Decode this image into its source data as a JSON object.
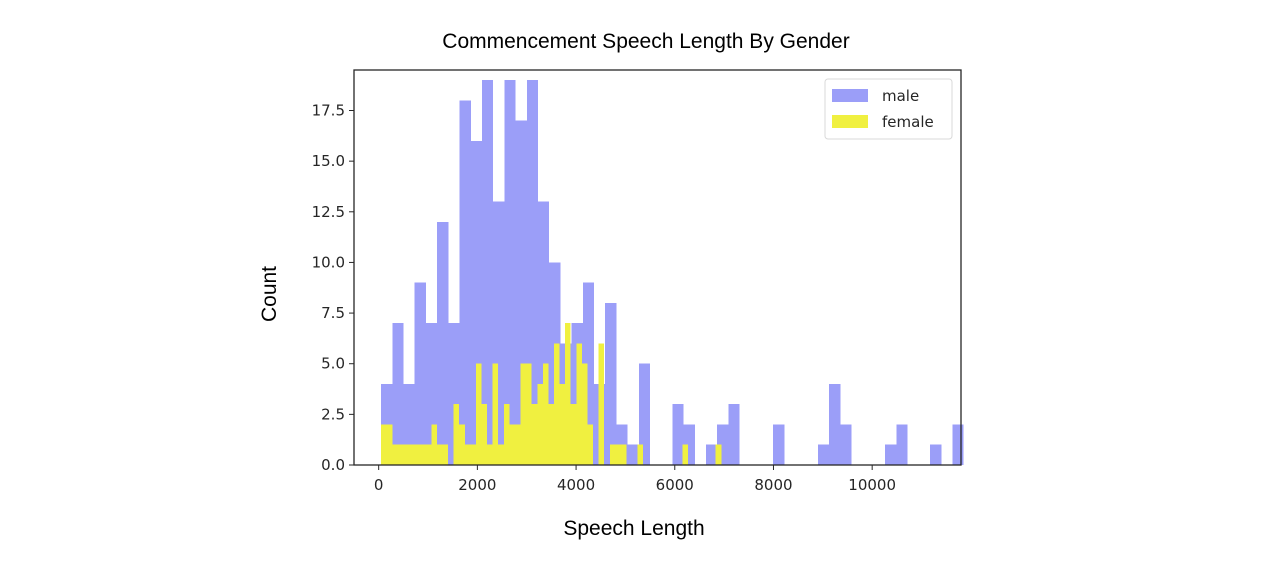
{
  "chart_data": {
    "type": "bar",
    "title": "Commencement Speech Length By Gender",
    "xlabel": "Speech Length",
    "ylabel": "Count",
    "xlim": [
      -500,
      11800
    ],
    "ylim": [
      0,
      19.5
    ],
    "xticks": [
      0,
      2000,
      4000,
      6000,
      8000,
      10000
    ],
    "yticks": [
      0.0,
      2.5,
      5.0,
      7.5,
      10.0,
      12.5,
      15.0,
      17.5
    ],
    "grid": false,
    "legend_position": "top-right",
    "series": [
      {
        "name": "male",
        "color": "#9b9ef8",
        "bin_start": 50,
        "bin_width": 227,
        "values": [
          4,
          7,
          4,
          9,
          7,
          12,
          7,
          18,
          16,
          19,
          13,
          19,
          17,
          19,
          13,
          10,
          6,
          7,
          9,
          4,
          8,
          2,
          1,
          5,
          0,
          0,
          3,
          2,
          0,
          1,
          2,
          3,
          0,
          0,
          0,
          2,
          0,
          0,
          0,
          1,
          4,
          2,
          0,
          0,
          0,
          1,
          2,
          0,
          0,
          1,
          0,
          2
        ]
      },
      {
        "name": "female",
        "color": "#f0f040",
        "bin_start": 50,
        "bin_width": 113,
        "values": [
          2,
          2,
          1,
          1,
          1,
          1,
          1,
          1,
          1,
          2,
          1,
          1,
          0,
          3,
          2,
          1,
          1,
          5,
          3,
          1,
          5,
          1,
          3,
          2,
          2,
          5,
          5,
          3,
          4,
          5,
          3,
          6,
          4,
          7,
          3,
          6,
          5,
          2,
          0,
          6,
          0,
          1,
          1,
          1,
          0,
          0,
          1,
          0,
          0,
          0,
          0,
          0,
          0,
          0,
          1,
          0,
          0,
          0,
          0,
          0,
          1
        ]
      }
    ]
  }
}
